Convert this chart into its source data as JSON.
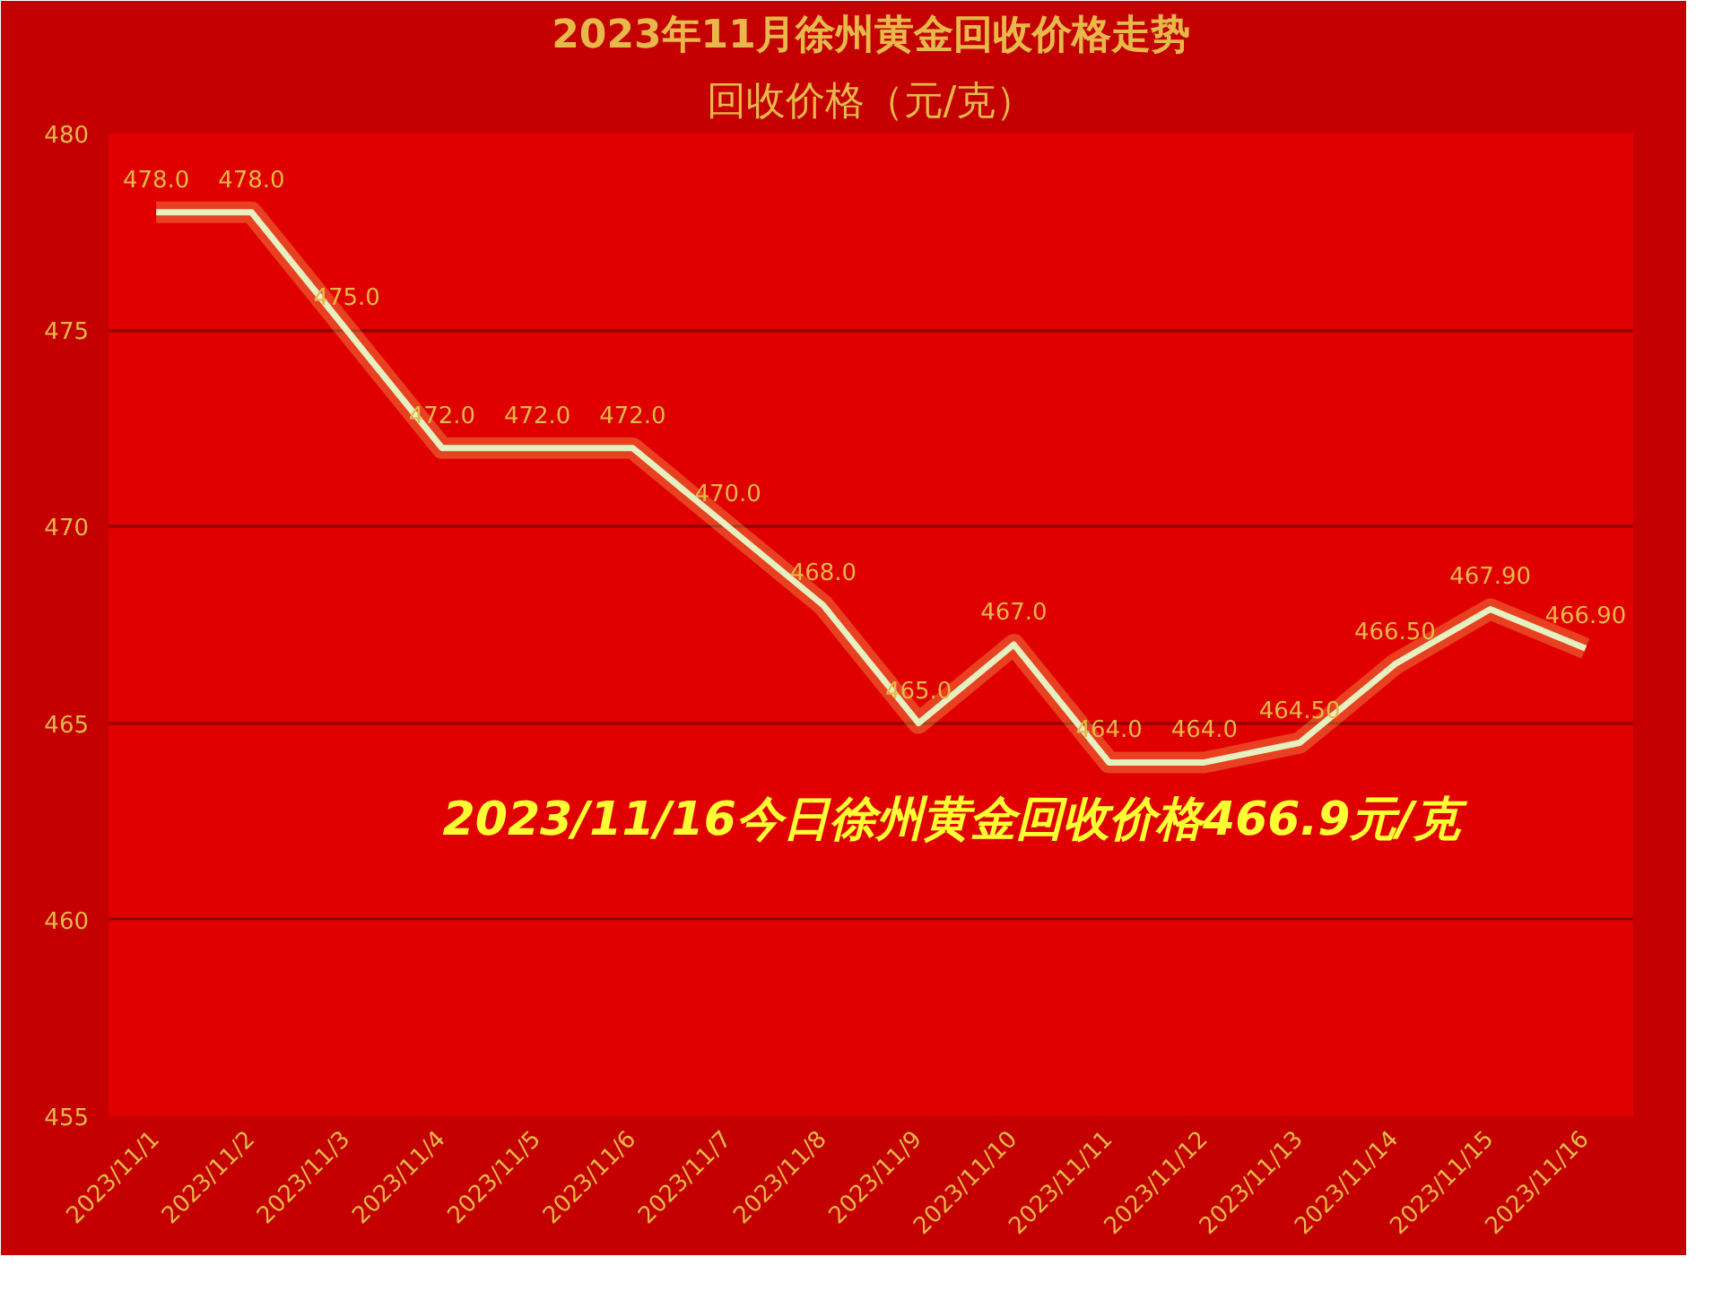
{
  "chart_data": {
    "type": "line",
    "title": "2023年11月徐州黄金回收价格走势",
    "subtitle": "回收价格（元/克）",
    "categories": [
      "2023/11/1",
      "2023/11/2",
      "2023/11/3",
      "2023/11/4",
      "2023/11/5",
      "2023/11/6",
      "2023/11/7",
      "2023/11/8",
      "2023/11/9",
      "2023/11/10",
      "2023/11/11",
      "2023/11/12",
      "2023/11/13",
      "2023/11/14",
      "2023/11/15",
      "2023/11/16"
    ],
    "series": [
      {
        "color": "#e6f0c0",
        "values": [
          478.0,
          478.0,
          475.0,
          472.0,
          472.0,
          472.0,
          470.0,
          468.0,
          465.0,
          467.0,
          464.0,
          464.0,
          464.5,
          466.5,
          467.9,
          466.9
        ],
        "value_labels": [
          "478.0",
          "478.0",
          "475.0",
          "472.0",
          "472.0",
          "472.0",
          "470.0",
          "468.0",
          "465.0",
          "467.0",
          "464.0",
          "464.0",
          "464.50",
          "466.50",
          "467.90",
          "466.90"
        ]
      }
    ],
    "ylim": [
      455,
      480
    ],
    "yticks": [
      455,
      460,
      465,
      470,
      475,
      480
    ],
    "grid": "y",
    "marker": "none",
    "line_style": "solid",
    "annotations": [
      "2023/11/16今日徐州黄金回收价格466.9元/克"
    ]
  }
}
